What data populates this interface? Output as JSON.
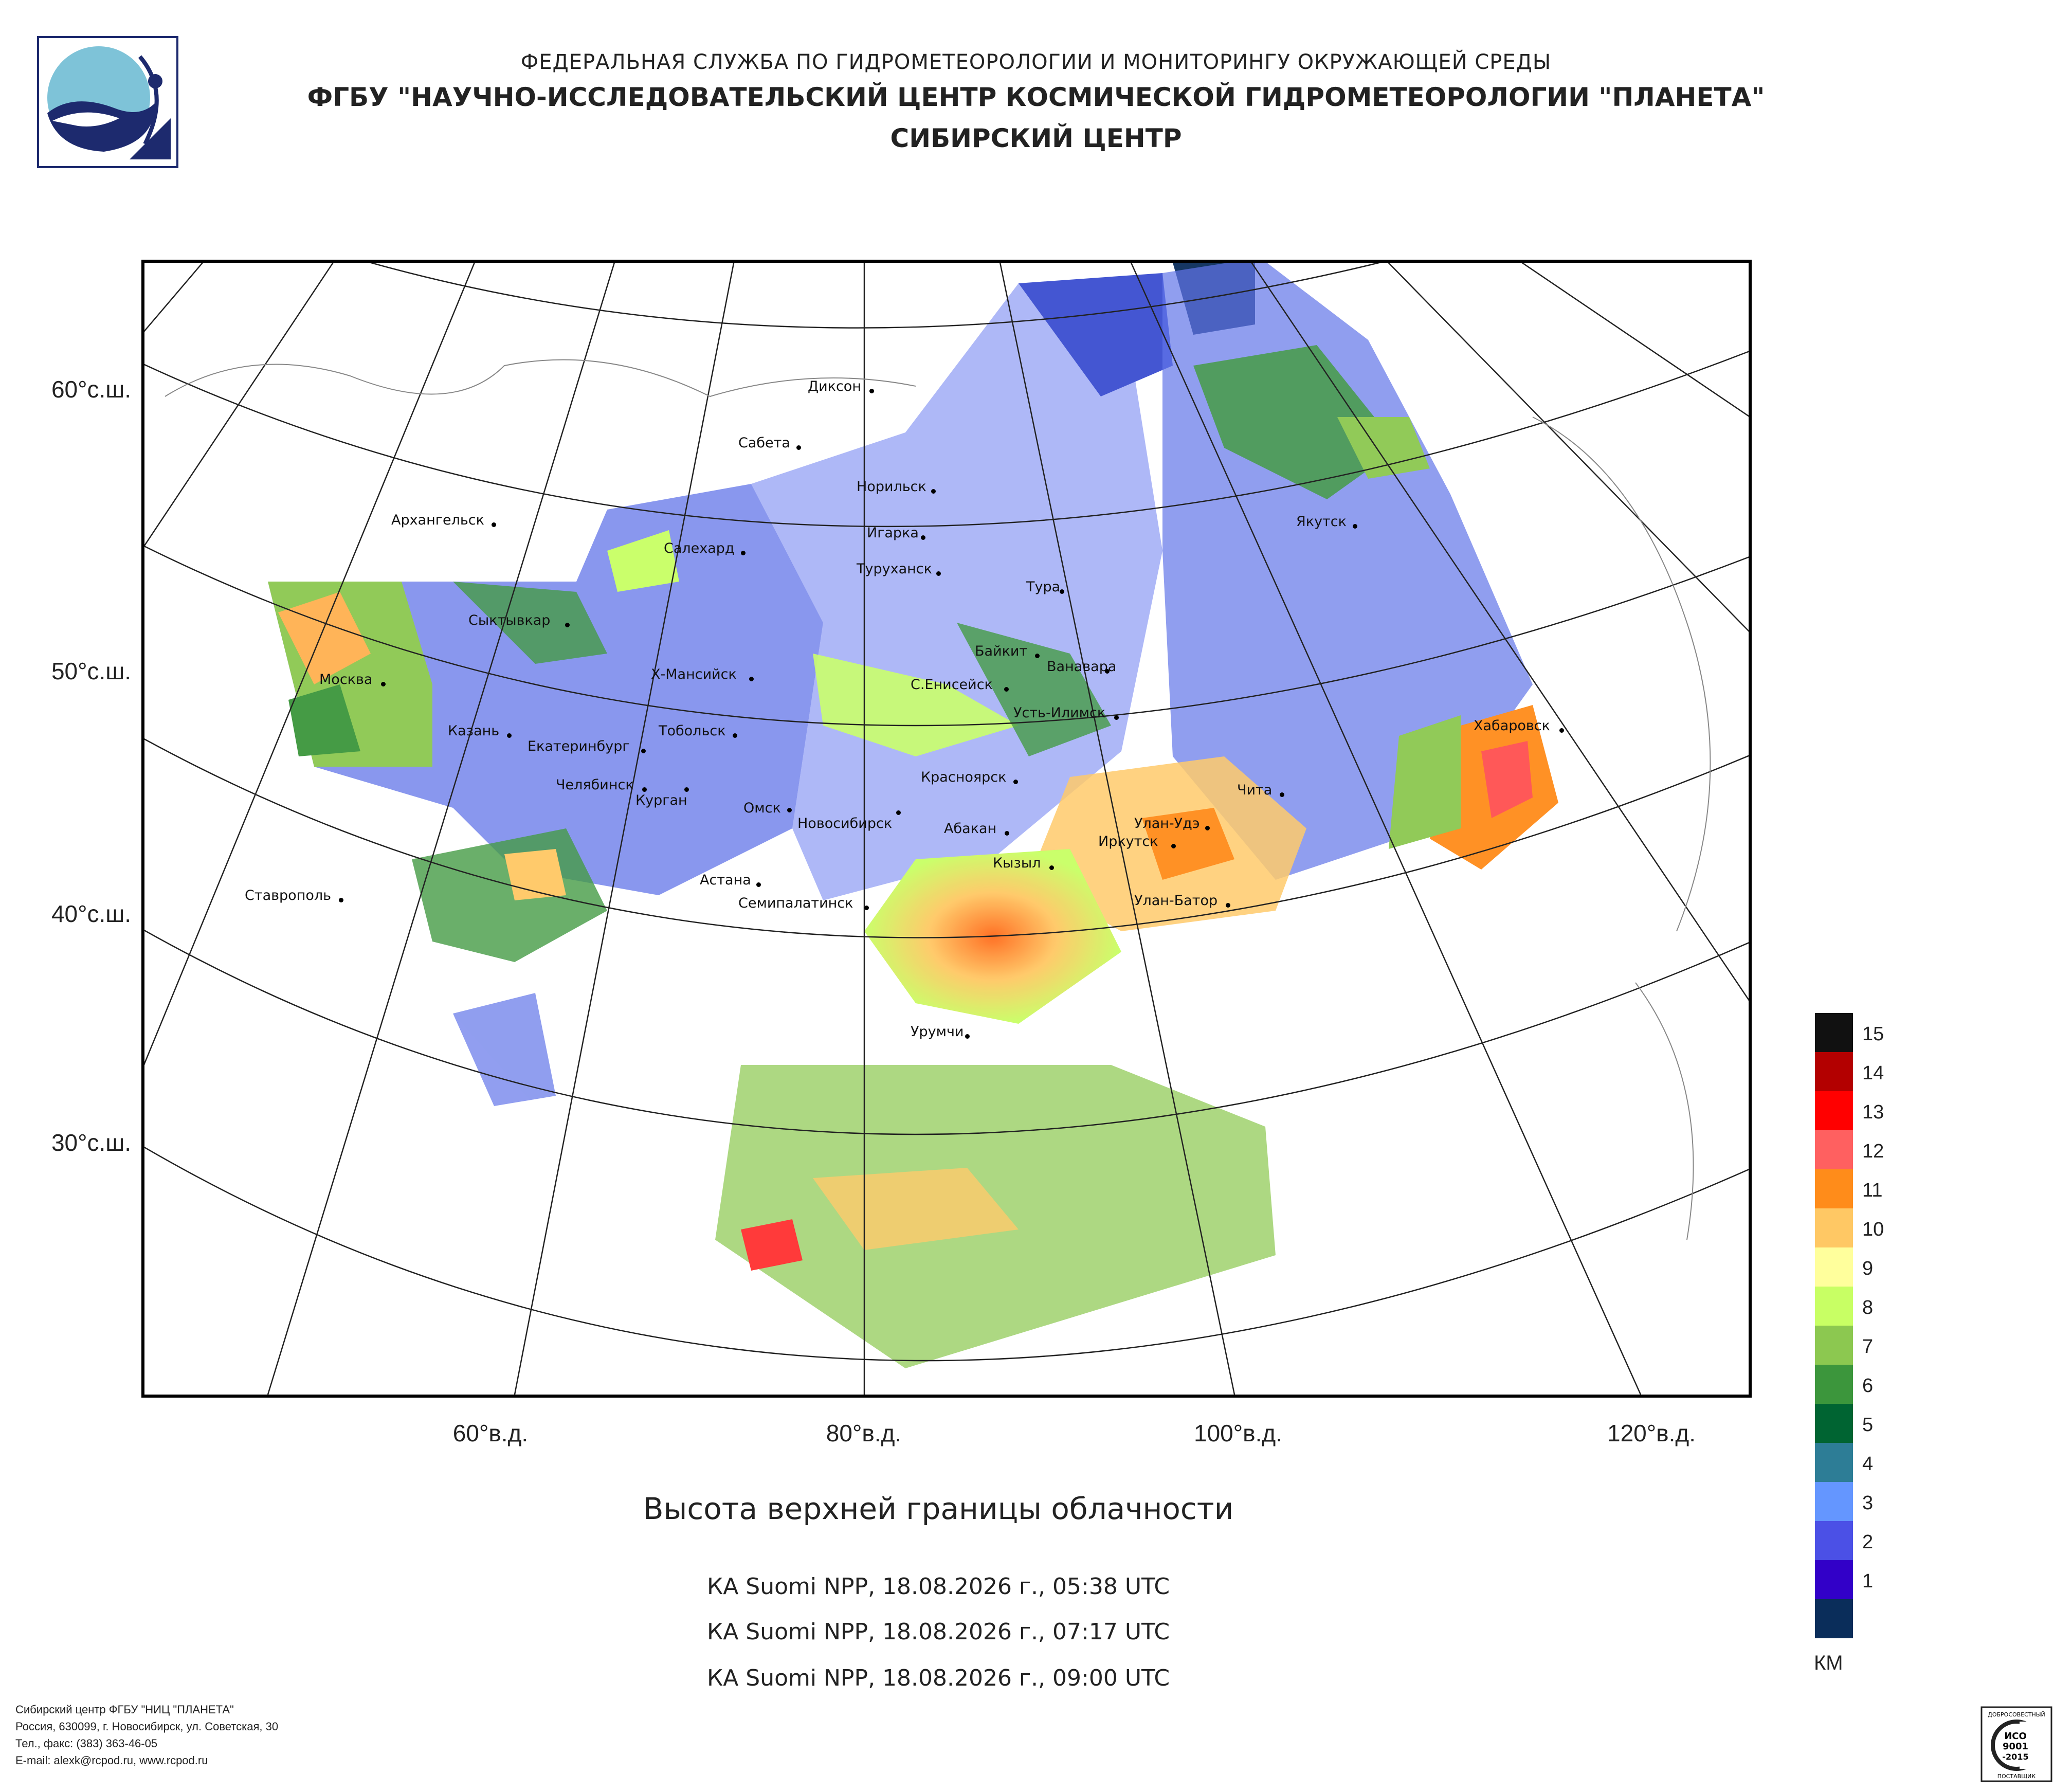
{
  "header": {
    "line1": "ФЕДЕРАЛЬНАЯ СЛУЖБА ПО ГИДРОМЕТЕОРОЛОГИИ И МОНИТОРИНГУ ОКРУЖАЮЩЕЙ СРЕДЫ",
    "line2": "ФГБУ \"НАУЧНО-ИССЛЕДОВАТЕЛЬСКИЙ ЦЕНТР КОСМИЧЕСКОЙ ГИДРОМЕТЕОРОЛОГИИ \"ПЛАНЕТА\"",
    "line3": "СИБИРСКИЙ ЦЕНТР"
  },
  "map": {
    "lat_labels": [
      "60°с.ш.",
      "50°с.ш.",
      "40°с.ш.",
      "30°с.ш."
    ],
    "lon_labels": [
      "60°в.д.",
      "80°в.д.",
      "100°в.д.",
      "120°в.д."
    ],
    "cities": [
      "Диксон",
      "Сабета",
      "Норильск",
      "Архангельск",
      "Салехард",
      "Игарка",
      "Туруханск",
      "Тура",
      "Якутск",
      "Сыктывкар",
      "Байкит",
      "Ванавара",
      "Москва",
      "Х-Мансийск",
      "С.Енисейск",
      "Усть-Илимск",
      "Хабаровск",
      "Казань",
      "Екатеринбург",
      "Тобольск",
      "Красноярск",
      "Чита",
      "Челябинск",
      "Курган",
      "Омск",
      "Новосибирск",
      "Абакан",
      "Улан-Удэ",
      "Иркутск",
      "Кызыл",
      "Ставрополь",
      "Астана",
      "Семипалатинск",
      "Улан-Батор",
      "Урумчи"
    ]
  },
  "product": {
    "title": "Высота верхней границы облачности",
    "passes": [
      "КА Suomi NPP, 18.08.2026 г., 05:38 UTC",
      "КА Suomi NPP, 18.08.2026 г., 07:17 UTC",
      "КА Suomi NPP, 18.08.2026 г., 09:00 UTC"
    ]
  },
  "legend": {
    "unit": "КМ",
    "items": [
      {
        "value": "15",
        "color": "#111111"
      },
      {
        "value": "14",
        "color": "#b30000"
      },
      {
        "value": "13",
        "color": "#ff0000"
      },
      {
        "value": "12",
        "color": "#ff6060"
      },
      {
        "value": "11",
        "color": "#ff8c1a"
      },
      {
        "value": "10",
        "color": "#ffc864"
      },
      {
        "value": "9",
        "color": "#ffff9c"
      },
      {
        "value": "8",
        "color": "#c8ff64"
      },
      {
        "value": "7",
        "color": "#8cc850"
      },
      {
        "value": "6",
        "color": "#3c963c"
      },
      {
        "value": "5",
        "color": "#006432"
      },
      {
        "value": "4",
        "color": "#2d7d96"
      },
      {
        "value": "3",
        "color": "#6496ff"
      },
      {
        "value": "2",
        "color": "#4b50e6"
      },
      {
        "value": "1",
        "color": "#3200c8"
      },
      {
        "value": "",
        "color": "#0a2d5a"
      }
    ]
  },
  "footer": {
    "lines": [
      "Сибирский центр ФГБУ \"НИЦ \"ПЛАНЕТА\"",
      "Россия, 630099, г. Новосибирск, ул. Советская, 30",
      "Тел., факс: (383) 363-46-05",
      "E-mail: alexk@rcpod.ru, www.rcpod.ru"
    ]
  },
  "certificate": {
    "top": "ДОБРОСОВЕСТНЫЙ",
    "iso": "ИСО",
    "num": "9001",
    "year": "-2015",
    "bottom": "ПОСТАВЩИК"
  }
}
